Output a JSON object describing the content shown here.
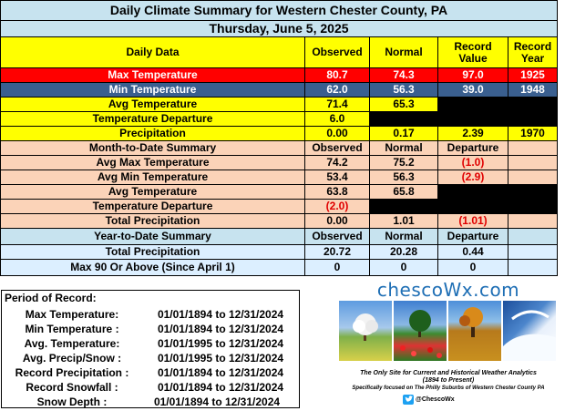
{
  "title": "Daily Climate Summary for Western Chester County, PA",
  "date": "Thursday, June 5, 2025",
  "headers": {
    "daily_data": "Daily Data",
    "observed": "Observed",
    "normal": "Normal",
    "record_value": "Record Value",
    "record_year": "Record Year"
  },
  "daily": {
    "max_temp": {
      "label": "Max Temperature",
      "observed": "80.7",
      "normal": "74.3",
      "record": "97.0",
      "year": "1925"
    },
    "min_temp": {
      "label": "Min Temperature",
      "observed": "62.0",
      "normal": "56.3",
      "record": "39.0",
      "year": "1948"
    },
    "avg_temp": {
      "label": "Avg Temperature",
      "observed": "71.4",
      "normal": "65.3"
    },
    "temp_dep": {
      "label": "Temperature Departure",
      "observed": "6.0"
    },
    "precip": {
      "label": "Precipitation",
      "observed": "0.00",
      "normal": "0.17",
      "record": "2.39",
      "year": "1970"
    }
  },
  "mtd": {
    "title": "Month-to-Date Summary",
    "observed": "Observed",
    "normal": "Normal",
    "departure": "Departure",
    "rows": [
      {
        "label": "Avg Max Temperature",
        "observed": "74.2",
        "normal": "75.2",
        "departure": "(1.0)"
      },
      {
        "label": "Avg Min Temperature",
        "observed": "53.4",
        "normal": "56.3",
        "departure": "(2.9)"
      },
      {
        "label": "Avg Temperature",
        "observed": "63.8",
        "normal": "65.8"
      },
      {
        "label": "Temperature Departure",
        "observed": "(2.0)"
      },
      {
        "label": "Total Precipitation",
        "observed": "0.00",
        "normal": "1.01",
        "departure": "(1.01)"
      }
    ]
  },
  "ytd": {
    "title": "Year-to-Date Summary",
    "observed": "Observed",
    "normal": "Normal",
    "departure": "Departure",
    "rows": [
      {
        "label": "Total Precipitation",
        "observed": "20.72",
        "normal": "20.28",
        "departure": "0.44"
      },
      {
        "label": "Max 90 Or Above (Since April 1)",
        "observed": "0",
        "normal": "0",
        "departure": "0"
      }
    ]
  },
  "period_of_record": {
    "title": "Period of Record:",
    "rows": [
      {
        "label": "Max Temperature:",
        "value": "01/01/1894 to 12/31/2024"
      },
      {
        "label": "Min Temperature :",
        "value": "01/01/1894 to 12/31/2024"
      },
      {
        "label": "Avg. Temperature:",
        "value": "01/01/1995 to 12/31/2024"
      },
      {
        "label": "Avg. Precip/Snow :",
        "value": "01/01/1995 to 12/31/2024"
      },
      {
        "label": "Record Precipitation :",
        "value": "01/01/1894 to 12/31/2024"
      },
      {
        "label": "Record Snowfall :",
        "value": "01/01/1894 to 12/31/2024"
      },
      {
        "label": "Snow Depth :",
        "value": "01/01/1894 to 12/31/2024"
      }
    ]
  },
  "logo": {
    "name": "chescoWx.com",
    "tagline1": "The Only Site for Current and Historical Weather Analytics",
    "tagline2": "(1894 to Present)",
    "tagline3": "Specifically focused on The Philly Suburbs of Western Chester County PA",
    "twitter": "@ChescoWx",
    "twitter_icon": "twitter-bird-icon"
  },
  "colors": {
    "header_blue": "#c7e3ef",
    "yellow": "#ffff00",
    "max_red": "#ff0000",
    "min_slate": "#3a5f8f",
    "peach": "#fbd3b8",
    "departure_red": "#e00000",
    "logo_blue": "#1f6fb5"
  }
}
